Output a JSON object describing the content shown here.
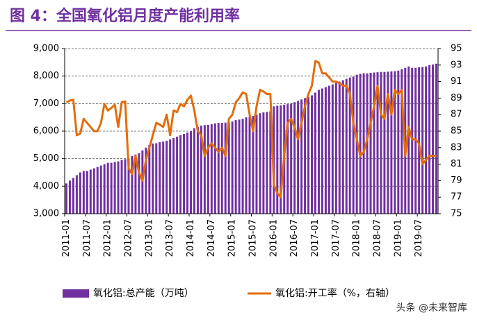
{
  "chart_data": {
    "type": "bar-line",
    "title": "图 4：全国氧化铝月度产能利用率",
    "watermark": "头条 @未来智库",
    "categories": [
      "2011-01",
      null,
      null,
      null,
      null,
      null,
      "2011-07",
      null,
      null,
      null,
      null,
      null,
      "2012-01",
      null,
      null,
      null,
      null,
      null,
      "2012-07",
      null,
      null,
      null,
      null,
      null,
      "2013-01",
      null,
      null,
      null,
      null,
      null,
      "2013-07",
      null,
      null,
      null,
      null,
      null,
      "2014-01",
      null,
      null,
      null,
      null,
      null,
      "2014-07",
      null,
      null,
      null,
      null,
      null,
      "2015-01",
      null,
      null,
      null,
      null,
      null,
      "2015-07",
      null,
      null,
      null,
      null,
      null,
      "2016-01",
      null,
      null,
      null,
      null,
      null,
      "2016-07",
      null,
      null,
      null,
      null,
      null,
      "2017-01",
      null,
      null,
      null,
      null,
      null,
      "2017-07",
      null,
      null,
      null,
      null,
      null,
      "2018-01",
      null,
      null,
      null,
      null,
      null,
      "2018-07",
      null,
      null,
      null,
      null,
      null,
      "2019-01",
      null,
      null,
      null,
      null,
      null,
      "2019-07",
      null,
      null,
      null,
      null,
      null
    ],
    "series": [
      {
        "name": "氧化铝:总产能（万吨）",
        "type": "bar",
        "color": "#7030a0",
        "values": [
          4100,
          4200,
          4300,
          4400,
          4500,
          4550,
          4550,
          4600,
          4650,
          4700,
          4750,
          4800,
          4850,
          4850,
          4880,
          4900,
          4950,
          4980,
          5000,
          5100,
          5150,
          5200,
          5300,
          5400,
          5500,
          5550,
          5560,
          5600,
          5620,
          5650,
          5700,
          5750,
          5800,
          5850,
          5900,
          5950,
          6000,
          6100,
          6150,
          6200,
          6220,
          6230,
          6250,
          6280,
          6300,
          6300,
          6310,
          6320,
          6350,
          6400,
          6420,
          6450,
          6500,
          6520,
          6550,
          6600,
          6650,
          6680,
          6700,
          6720,
          6900,
          6920,
          6940,
          6960,
          6980,
          7000,
          7050,
          7100,
          7150,
          7200,
          7250,
          7300,
          7400,
          7500,
          7550,
          7600,
          7650,
          7700,
          7750,
          7800,
          7850,
          7900,
          7950,
          7980,
          8050,
          8080,
          8100,
          8100,
          8120,
          8130,
          8140,
          8150,
          8150,
          8160,
          8170,
          8180,
          8200,
          8250,
          8300,
          8350,
          8300,
          8300,
          8320,
          8330,
          8350,
          8400,
          8420,
          8450
        ]
      },
      {
        "name": "氧化铝:开工率（%，右轴）",
        "type": "line",
        "axis": "y2",
        "color": "#e36c0a",
        "values": [
          88.5,
          88.7,
          88.8,
          84.5,
          84.7,
          86.5,
          86,
          85.5,
          85,
          85,
          86,
          88.3,
          87.5,
          87.8,
          88.2,
          85.5,
          88.5,
          88.6,
          80.5,
          79.8,
          82,
          80,
          79,
          81.5,
          83,
          84.5,
          86,
          85.8,
          85.5,
          87,
          84.5,
          87.5,
          87.3,
          88.3,
          88,
          88.8,
          89.3,
          87.5,
          85,
          84.5,
          82,
          83,
          83.5,
          83,
          82.5,
          83,
          82,
          86.5,
          87,
          88.5,
          89,
          89.7,
          89.5,
          87,
          85,
          88,
          90,
          89.8,
          89.5,
          89.5,
          78.5,
          77.5,
          77,
          82,
          86,
          86.5,
          85.5,
          84,
          86,
          88,
          89.5,
          90.5,
          93.5,
          93.3,
          92,
          92,
          91.5,
          91,
          91,
          90.8,
          90.5,
          90.5,
          89.5,
          86,
          84,
          82,
          82.5,
          84,
          86,
          88,
          90.5,
          87,
          86.5,
          89.5,
          87,
          90,
          89.5,
          90,
          82,
          85.5,
          84,
          84,
          83.5,
          81,
          81.5,
          82,
          82,
          82
        ]
      }
    ],
    "ylim": [
      3000,
      9000
    ],
    "yticks": [
      {
        "value": 3000,
        "label": "3,000"
      },
      {
        "value": 4000,
        "label": "4,000"
      },
      {
        "value": 5000,
        "label": "5,000"
      },
      {
        "value": 6000,
        "label": "6,000"
      },
      {
        "value": 7000,
        "label": "7,000"
      },
      {
        "value": 8000,
        "label": "8,000"
      },
      {
        "value": 9000,
        "label": "9,000"
      }
    ],
    "y2lim": [
      75,
      95
    ],
    "y2ticks": [
      75,
      77,
      79,
      81,
      83,
      85,
      87,
      89,
      91,
      93,
      95
    ],
    "grid": true
  }
}
